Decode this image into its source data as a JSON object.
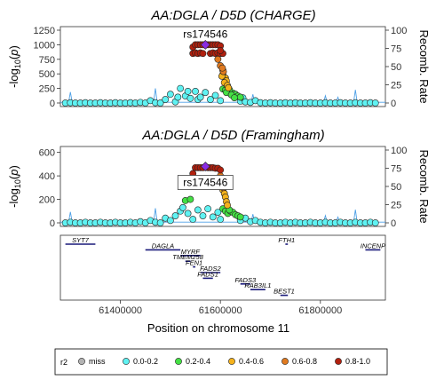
{
  "colors": {
    "miss": "#b3b3b3",
    "r2_0_0.2": "#5ff2f2",
    "r2_0.2_0.4": "#44e044",
    "r2_0.4_0.6": "#f5b21c",
    "r2_0.6_0.8": "#e07a20",
    "r2_0.8_1.0": "#b1200e",
    "lead": "#8a2be2",
    "recomb": "#4d9fe6",
    "gene": "#1a1a7a"
  },
  "chart_data": [
    {
      "type": "scatter",
      "title": "AA:DGLA / D5D (CHARGE)",
      "ylabel": "-log10(p)",
      "ylim": [
        0,
        1250
      ],
      "yticks": [
        0,
        250,
        500,
        750,
        1000,
        1250
      ],
      "y2label": "Recomb. Rate",
      "y2lim": [
        0,
        100
      ],
      "y2ticks": [
        0,
        25,
        50,
        75,
        100
      ],
      "xlim": [
        61280000,
        61930000
      ],
      "lead_snp": {
        "label": "rs174546",
        "x": 61570000,
        "y": 1000
      },
      "series": [
        {
          "r2": "0.8-1.0",
          "points": [
            [
              61545000,
              960
            ],
            [
              61550000,
              1000
            ],
            [
              61555000,
              1000
            ],
            [
              61560000,
              1000
            ],
            [
              61565000,
              1000
            ],
            [
              61575000,
              1000
            ],
            [
              61580000,
              1000
            ],
            [
              61585000,
              1000
            ],
            [
              61590000,
              1000
            ],
            [
              61595000,
              1000
            ],
            [
              61600000,
              980
            ],
            [
              61545000,
              850
            ],
            [
              61550000,
              860
            ],
            [
              61555000,
              850
            ],
            [
              61560000,
              860
            ],
            [
              61565000,
              850
            ],
            [
              61580000,
              850
            ],
            [
              61585000,
              860
            ],
            [
              61590000,
              850
            ],
            [
              61595000,
              860
            ],
            [
              61600000,
              850
            ],
            [
              61605000,
              850
            ],
            [
              61600000,
              900
            ]
          ]
        },
        {
          "r2": "0.6-0.8",
          "points": [
            [
              61595000,
              750
            ],
            [
              61600000,
              640
            ],
            [
              61605000,
              560
            ],
            [
              61606000,
              540
            ],
            [
              61604000,
              600
            ]
          ]
        },
        {
          "r2": "0.4-0.6",
          "points": [
            [
              61605000,
              490
            ],
            [
              61610000,
              430
            ],
            [
              61603000,
              460
            ],
            [
              61612000,
              380
            ],
            [
              61608000,
              350
            ],
            [
              61614000,
              300
            ],
            [
              61616000,
              260
            ]
          ]
        },
        {
          "r2": "0.2-0.4",
          "points": [
            [
              61605000,
              240
            ],
            [
              61610000,
              220
            ],
            [
              61615000,
              200
            ],
            [
              61620000,
              180
            ],
            [
              61625000,
              170
            ],
            [
              61630000,
              150
            ],
            [
              61618000,
              230
            ],
            [
              61612000,
              180
            ],
            [
              61622000,
              140
            ],
            [
              61635000,
              120
            ],
            [
              61640000,
              100
            ],
            [
              61628000,
              90
            ]
          ]
        },
        {
          "r2": "0.0-0.2",
          "points": [
            [
              61290000,
              0
            ],
            [
              61300000,
              5
            ],
            [
              61310000,
              0
            ],
            [
              61320000,
              0
            ],
            [
              61330000,
              5
            ],
            [
              61340000,
              0
            ],
            [
              61350000,
              0
            ],
            [
              61360000,
              5
            ],
            [
              61370000,
              0
            ],
            [
              61380000,
              0
            ],
            [
              61390000,
              5
            ],
            [
              61400000,
              0
            ],
            [
              61410000,
              0
            ],
            [
              61420000,
              5
            ],
            [
              61430000,
              0
            ],
            [
              61440000,
              10
            ],
            [
              61450000,
              0
            ],
            [
              61460000,
              40
            ],
            [
              61470000,
              5
            ],
            [
              61480000,
              0
            ],
            [
              61490000,
              60
            ],
            [
              61500000,
              150
            ],
            [
              61510000,
              20
            ],
            [
              61515000,
              100
            ],
            [
              61520000,
              250
            ],
            [
              61530000,
              120
            ],
            [
              61535000,
              200
            ],
            [
              61540000,
              80
            ],
            [
              61550000,
              200
            ],
            [
              61555000,
              60
            ],
            [
              61560000,
              100
            ],
            [
              61570000,
              180
            ],
            [
              61580000,
              60
            ],
            [
              61590000,
              130
            ],
            [
              61600000,
              40
            ],
            [
              61640000,
              30
            ],
            [
              61645000,
              90
            ],
            [
              61650000,
              20
            ],
            [
              61660000,
              10
            ],
            [
              61670000,
              40
            ],
            [
              61680000,
              5
            ],
            [
              61690000,
              0
            ],
            [
              61700000,
              5
            ],
            [
              61710000,
              0
            ],
            [
              61720000,
              0
            ],
            [
              61730000,
              5
            ],
            [
              61740000,
              0
            ],
            [
              61750000,
              5
            ],
            [
              61760000,
              0
            ],
            [
              61770000,
              0
            ],
            [
              61780000,
              5
            ],
            [
              61790000,
              0
            ],
            [
              61800000,
              0
            ],
            [
              61810000,
              5
            ],
            [
              61820000,
              0
            ],
            [
              61830000,
              0
            ],
            [
              61840000,
              5
            ],
            [
              61850000,
              0
            ],
            [
              61860000,
              0
            ],
            [
              61870000,
              5
            ],
            [
              61880000,
              0
            ],
            [
              61890000,
              0
            ],
            [
              61900000,
              5
            ],
            [
              61910000,
              0
            ]
          ]
        }
      ],
      "recomb_peaks": [
        [
          61300000,
          15
        ],
        [
          61470000,
          20
        ],
        [
          61665000,
          12
        ],
        [
          61810000,
          10
        ],
        [
          61835000,
          8
        ],
        [
          61870000,
          18
        ]
      ]
    },
    {
      "type": "scatter",
      "title": "AA:DGLA / D5D (Framingham)",
      "ylabel": "-log10(p)",
      "ylim": [
        0,
        620
      ],
      "yticks": [
        0,
        200,
        400,
        600
      ],
      "y2label": "Recomb. Rate",
      "y2lim": [
        0,
        100
      ],
      "y2ticks": [
        0,
        25,
        50,
        75,
        100
      ],
      "xlim": [
        61280000,
        61930000
      ],
      "lead_snp": {
        "label": "rs174546",
        "x": 61570000,
        "y": 480
      },
      "series": [
        {
          "r2": "0.8-1.0",
          "points": [
            [
              61545000,
              420
            ],
            [
              61550000,
              470
            ],
            [
              61555000,
              470
            ],
            [
              61560000,
              470
            ],
            [
              61565000,
              470
            ],
            [
              61575000,
              470
            ],
            [
              61580000,
              470
            ],
            [
              61585000,
              470
            ],
            [
              61590000,
              465
            ],
            [
              61595000,
              465
            ],
            [
              61600000,
              450
            ],
            [
              61550000,
              360
            ],
            [
              61560000,
              360
            ],
            [
              61580000,
              360
            ],
            [
              61590000,
              360
            ],
            [
              61600000,
              360
            ],
            [
              61605000,
              350
            ]
          ]
        },
        {
          "r2": "0.6-0.8",
          "points": [
            [
              61600000,
              400
            ],
            [
              61605000,
              380
            ],
            [
              61603000,
              320
            ],
            [
              61606000,
              300
            ]
          ]
        },
        {
          "r2": "0.4-0.6",
          "points": [
            [
              61605000,
              280
            ],
            [
              61608000,
              250
            ],
            [
              61610000,
              220
            ],
            [
              61612000,
              180
            ],
            [
              61614000,
              150
            ]
          ]
        },
        {
          "r2": "0.2-0.4",
          "points": [
            [
              61530000,
              190
            ],
            [
              61540000,
              200
            ],
            [
              61605000,
              120
            ],
            [
              61610000,
              100
            ],
            [
              61615000,
              80
            ],
            [
              61620000,
              100
            ],
            [
              61625000,
              90
            ],
            [
              61630000,
              70
            ],
            [
              61635000,
              60
            ],
            [
              61640000,
              50
            ],
            [
              61618000,
              110
            ]
          ]
        },
        {
          "r2": "0.0-0.2",
          "points": [
            [
              61290000,
              0
            ],
            [
              61300000,
              5
            ],
            [
              61310000,
              0
            ],
            [
              61320000,
              0
            ],
            [
              61330000,
              5
            ],
            [
              61340000,
              0
            ],
            [
              61350000,
              0
            ],
            [
              61360000,
              5
            ],
            [
              61370000,
              0
            ],
            [
              61380000,
              0
            ],
            [
              61390000,
              5
            ],
            [
              61400000,
              0
            ],
            [
              61410000,
              0
            ],
            [
              61420000,
              5
            ],
            [
              61430000,
              0
            ],
            [
              61440000,
              10
            ],
            [
              61450000,
              0
            ],
            [
              61460000,
              20
            ],
            [
              61470000,
              5
            ],
            [
              61480000,
              0
            ],
            [
              61490000,
              40
            ],
            [
              61500000,
              20
            ],
            [
              61510000,
              60
            ],
            [
              61520000,
              100
            ],
            [
              61525000,
              130
            ],
            [
              61535000,
              80
            ],
            [
              61545000,
              30
            ],
            [
              61555000,
              110
            ],
            [
              61565000,
              60
            ],
            [
              61575000,
              120
            ],
            [
              61585000,
              50
            ],
            [
              61595000,
              90
            ],
            [
              61600000,
              30
            ],
            [
              61640000,
              20
            ],
            [
              61650000,
              40
            ],
            [
              61660000,
              10
            ],
            [
              61670000,
              20
            ],
            [
              61680000,
              5
            ],
            [
              61690000,
              0
            ],
            [
              61700000,
              5
            ],
            [
              61710000,
              0
            ],
            [
              61720000,
              0
            ],
            [
              61730000,
              5
            ],
            [
              61740000,
              0
            ],
            [
              61750000,
              5
            ],
            [
              61760000,
              0
            ],
            [
              61770000,
              0
            ],
            [
              61780000,
              5
            ],
            [
              61790000,
              0
            ],
            [
              61800000,
              0
            ],
            [
              61810000,
              5
            ],
            [
              61820000,
              0
            ],
            [
              61830000,
              0
            ],
            [
              61840000,
              5
            ],
            [
              61850000,
              0
            ],
            [
              61860000,
              0
            ],
            [
              61870000,
              5
            ],
            [
              61880000,
              0
            ],
            [
              61890000,
              0
            ],
            [
              61900000,
              5
            ],
            [
              61910000,
              0
            ]
          ]
        }
      ],
      "recomb_peaks": [
        [
          61300000,
          15
        ],
        [
          61470000,
          20
        ],
        [
          61665000,
          12
        ],
        [
          61810000,
          10
        ],
        [
          61835000,
          8
        ],
        [
          61870000,
          18
        ]
      ]
    },
    {
      "type": "gene-track",
      "xlabel": "Position on chromosome 11",
      "xticks": [
        61400000,
        61600000,
        61800000
      ],
      "xlim": [
        61280000,
        61930000
      ],
      "genes": [
        {
          "name": "SYT7",
          "start": 61290000,
          "end": 61350000,
          "row": 0
        },
        {
          "name": "DAGLA",
          "start": 61450000,
          "end": 61520000,
          "row": 1
        },
        {
          "name": "MYRF",
          "start": 61520000,
          "end": 61560000,
          "row": 2
        },
        {
          "name": "TMEM258",
          "start": 61530000,
          "end": 61540000,
          "row": 3
        },
        {
          "name": "FEN1",
          "start": 61545000,
          "end": 61550000,
          "row": 4
        },
        {
          "name": "FADS2",
          "start": 61560000,
          "end": 61600000,
          "row": 5
        },
        {
          "name": "FADS1",
          "start": 61565000,
          "end": 61585000,
          "row": 6
        },
        {
          "name": "FADS3",
          "start": 61640000,
          "end": 61660000,
          "row": 7
        },
        {
          "name": "RAB3IL1",
          "start": 61660000,
          "end": 61690000,
          "row": 8
        },
        {
          "name": "BEST1",
          "start": 61720000,
          "end": 61735000,
          "row": 9
        },
        {
          "name": "FTH1",
          "start": 61730000,
          "end": 61735000,
          "row": 0
        },
        {
          "name": "INCENP",
          "start": 61890000,
          "end": 61920000,
          "row": 1
        }
      ]
    }
  ],
  "legend": {
    "title": "r2",
    "items": [
      {
        "key": "miss",
        "label": "miss"
      },
      {
        "key": "r2_0_0.2",
        "label": "0.0-0.2"
      },
      {
        "key": "r2_0.2_0.4",
        "label": "0.2-0.4"
      },
      {
        "key": "r2_0.4_0.6",
        "label": "0.4-0.6"
      },
      {
        "key": "r2_0.6_0.8",
        "label": "0.6-0.8"
      },
      {
        "key": "r2_0.8_1.0",
        "label": "0.8-1.0"
      }
    ]
  }
}
